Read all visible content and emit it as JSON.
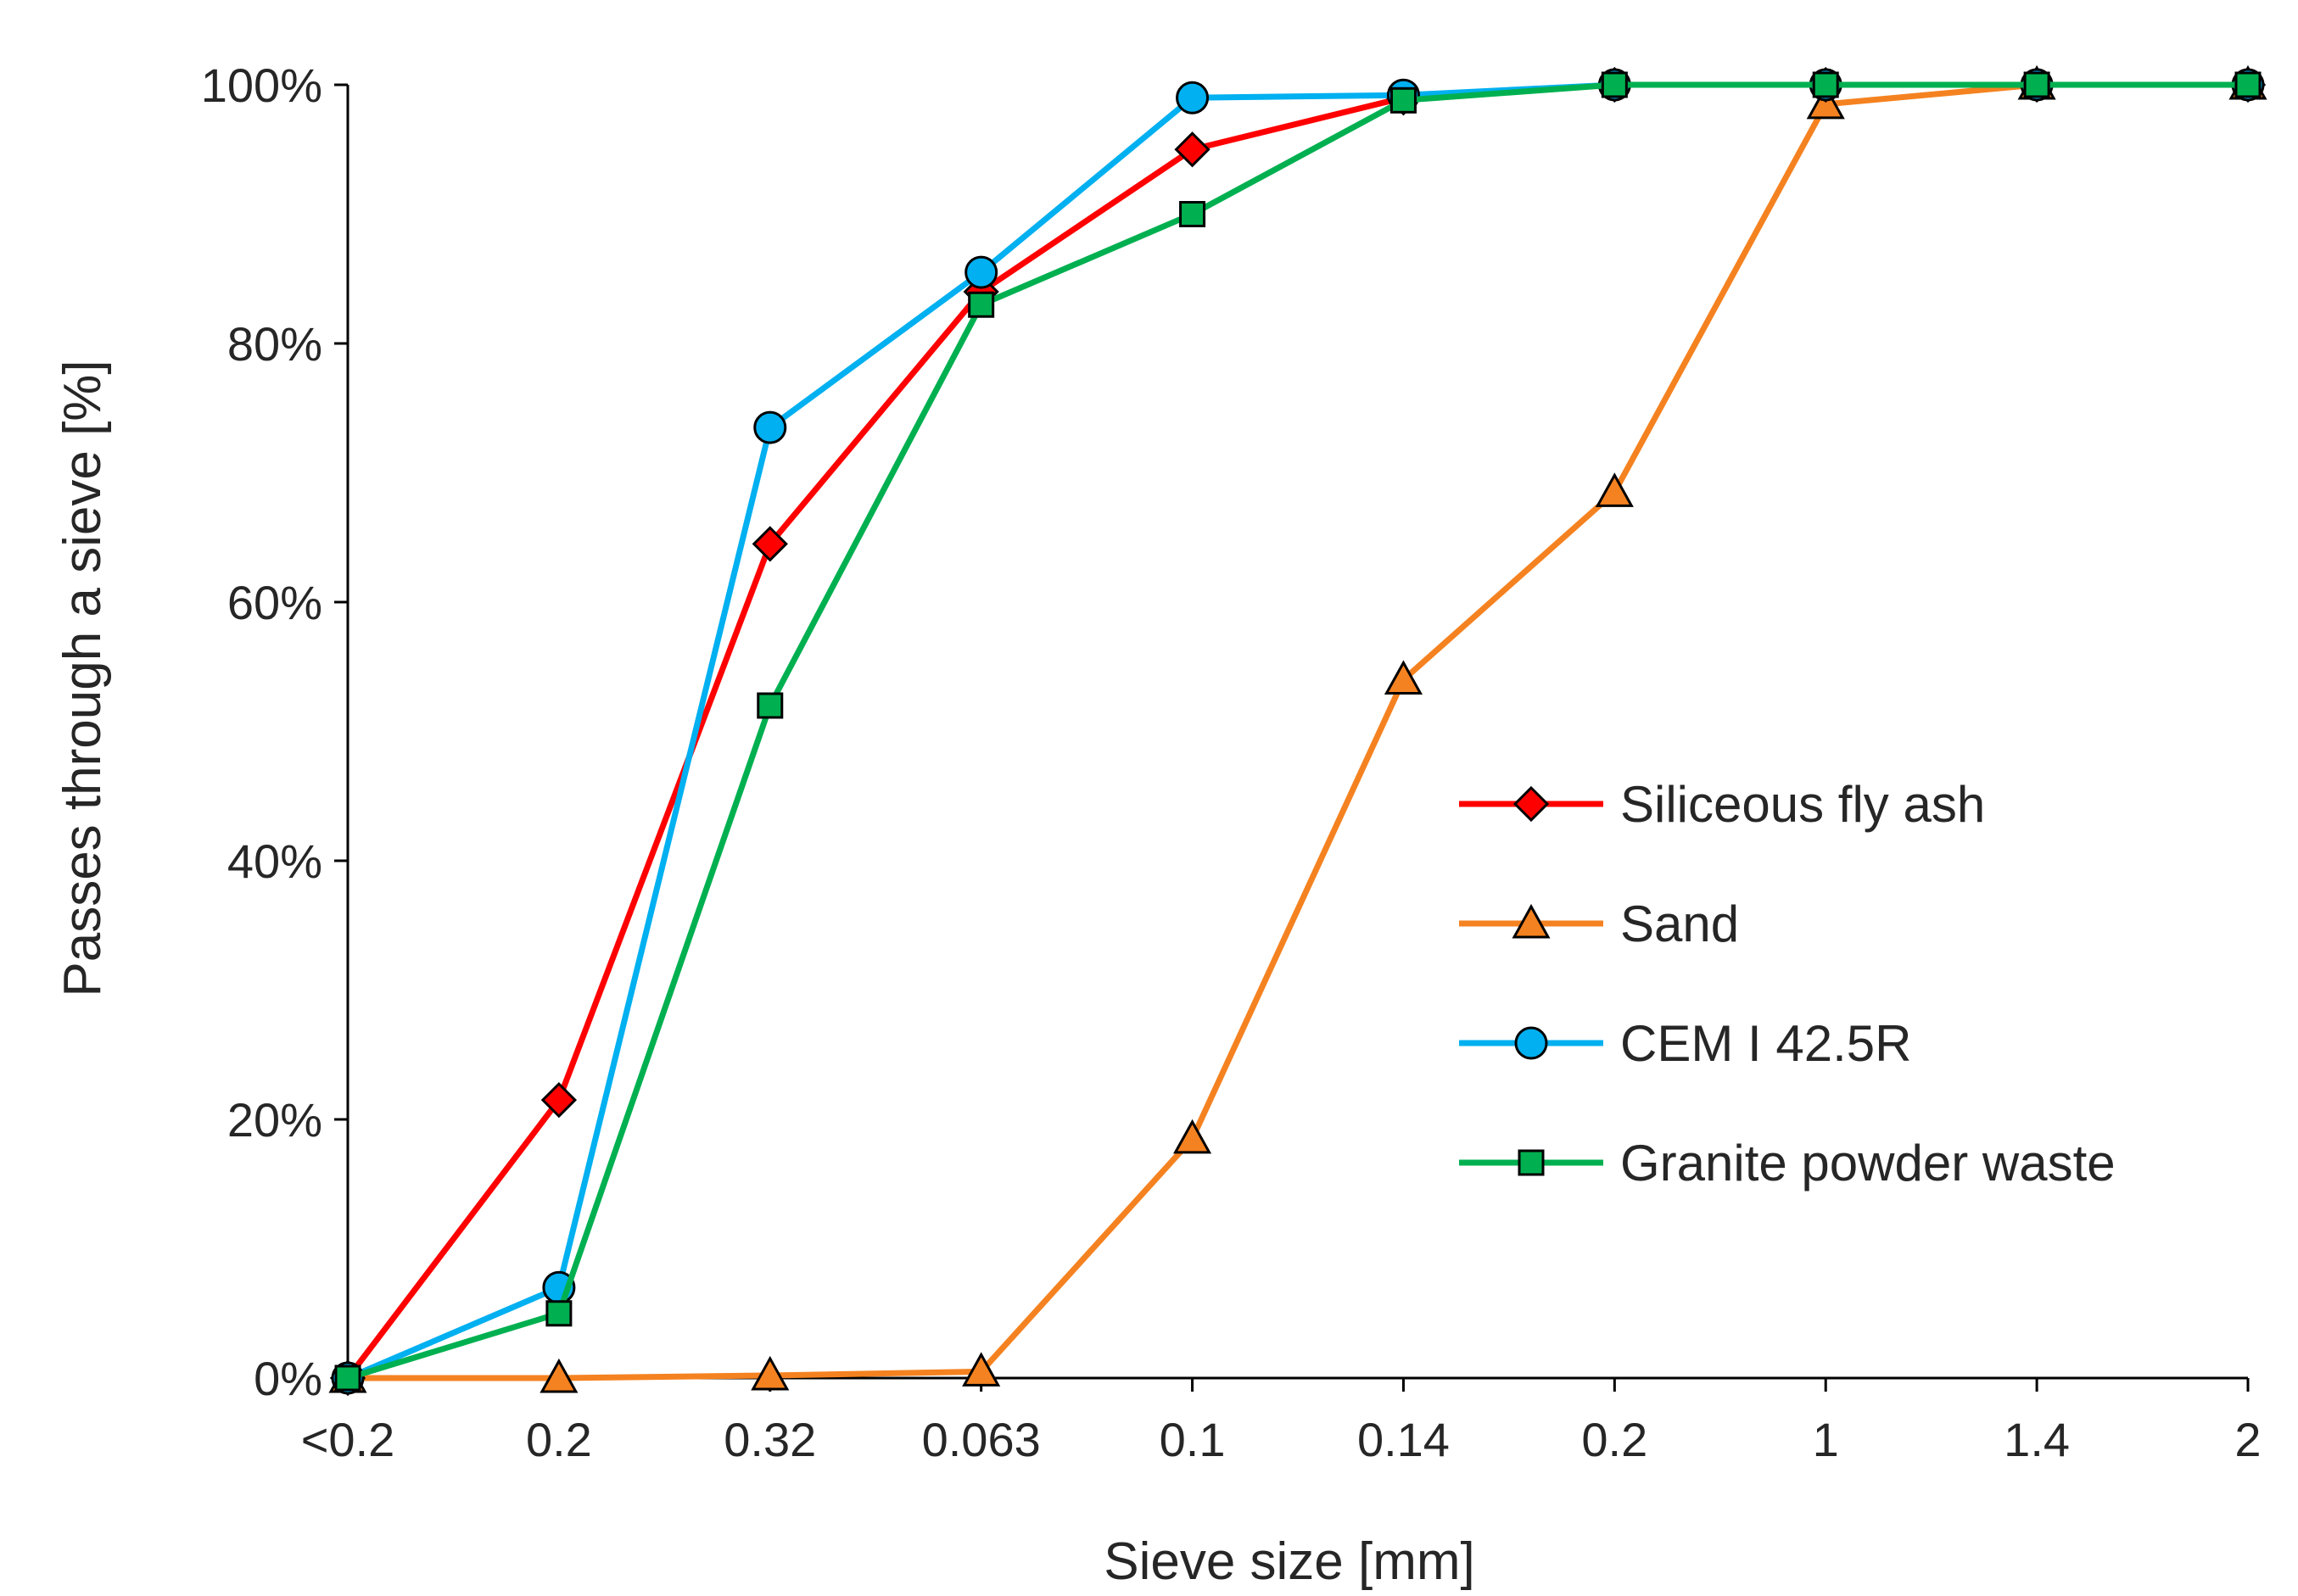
{
  "chart_data": {
    "type": "line",
    "title": "",
    "xlabel": "Sieve size [mm]",
    "ylabel": "Passes through a sieve [%]",
    "categories": [
      "<0.2",
      "0.2",
      "0.32",
      "0.063",
      "0.1",
      "0.14",
      "0.2",
      "1",
      "1.4",
      "2"
    ],
    "ylim": [
      0,
      100
    ],
    "yticks": [
      0,
      20,
      40,
      60,
      80,
      100
    ],
    "ytick_labels": [
      "0%",
      "20%",
      "40%",
      "60%",
      "80%",
      "100%"
    ],
    "grid": false,
    "legend_position": "right-center",
    "series": [
      {
        "name": "Siliceous fly ash",
        "color": "#ff0000",
        "marker": "diamond",
        "marker_color": "#ff0000",
        "values": [
          0,
          21.5,
          64.5,
          84,
          95,
          99,
          100,
          100,
          100,
          100
        ]
      },
      {
        "name": "Sand",
        "color": "#f58220",
        "marker": "triangle",
        "marker_color": "#f58220",
        "values": [
          0,
          0,
          0.2,
          0.5,
          18.5,
          54,
          68.5,
          98.5,
          100,
          100
        ]
      },
      {
        "name": "CEM I 42.5R",
        "color": "#00b0f0",
        "marker": "circle",
        "marker_color": "#00b0f0",
        "values": [
          0,
          7,
          73.5,
          85.5,
          99,
          99.2,
          100,
          100,
          100,
          100
        ]
      },
      {
        "name": "Granite powder waste",
        "color": "#00b050",
        "marker": "square",
        "marker_color": "#00b050",
        "values": [
          0,
          5,
          52,
          83,
          90,
          98.8,
          100,
          100,
          100,
          100
        ]
      }
    ]
  }
}
